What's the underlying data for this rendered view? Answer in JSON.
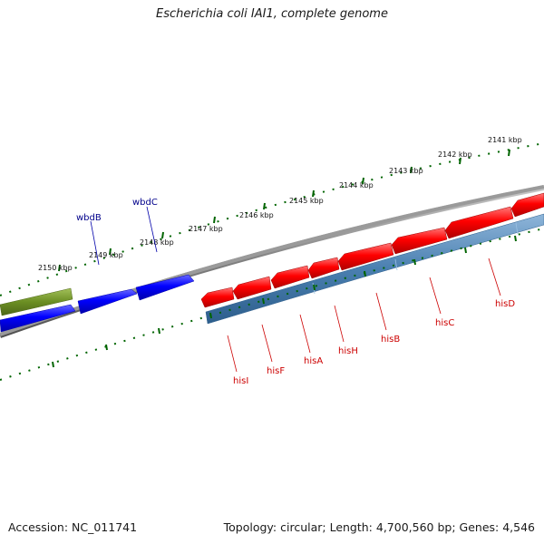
{
  "title": "Escherichia coli IAI1, complete genome",
  "footer": {
    "accession": "Accession: NC_011741",
    "summary": "Topology: circular; Length: 4,700,560 bp; Genes: 4,546"
  },
  "kbp_ticks": [
    "2141 kbp",
    "2142 kbp",
    "2143 kbp",
    "2144 kbp",
    "2145 kbp",
    "2146 kbp",
    "2147 kbp",
    "2148 kbp",
    "2149 kbp",
    "2150 kbp"
  ],
  "genes_blue": [
    {
      "name": "wbdB"
    },
    {
      "name": "wbdC"
    }
  ],
  "genes_red": [
    {
      "name": "hisI"
    },
    {
      "name": "hisF"
    },
    {
      "name": "hisA"
    },
    {
      "name": "hisH"
    },
    {
      "name": "hisB"
    },
    {
      "name": "hisC"
    },
    {
      "name": "hisD"
    }
  ],
  "colors": {
    "blue_gene": "#0000ff",
    "red_gene": "#ff0000",
    "olive_gene": "#6b8e23",
    "steel_band": "#4a7fb0",
    "backbone": "#808080",
    "tick_green": "#006400",
    "blue_label": "#00008b",
    "red_label": "#cc0000"
  }
}
